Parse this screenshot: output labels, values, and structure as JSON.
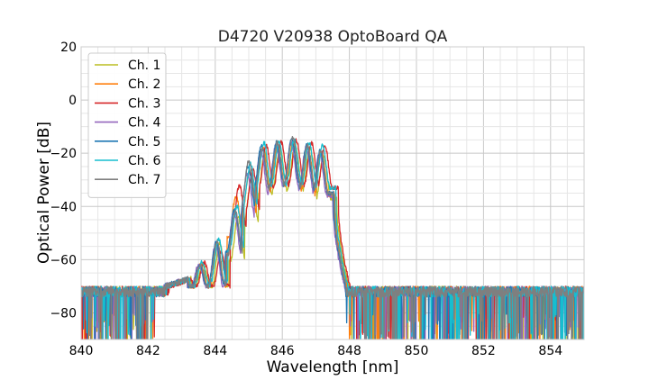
{
  "chart_data": {
    "type": "line",
    "title": "D4720 V20938 OptoBoard QA",
    "xlabel": "Wavelength [nm]",
    "ylabel": "Optical Power [dB]",
    "xlim": [
      840,
      855
    ],
    "ylim": [
      -90,
      20
    ],
    "xticks": [
      840,
      842,
      844,
      846,
      848,
      850,
      852,
      854
    ],
    "yticks": [
      -80,
      -60,
      -40,
      -20,
      0,
      20
    ],
    "xtick_labels": [
      "840",
      "842",
      "844",
      "846",
      "848",
      "850",
      "852",
      "854"
    ],
    "ytick_labels": [
      "−80",
      "−60",
      "−40",
      "−20",
      "0",
      "20"
    ],
    "grid": true,
    "legend_position": "upper-left",
    "noise_floor": -72,
    "series": [
      {
        "name": "Ch. 1",
        "color": "#bcbd22",
        "shift": 0.08,
        "peaks": [
          [
            843.55,
            -62
          ],
          [
            844.05,
            -54
          ],
          [
            844.6,
            -44
          ],
          [
            845.0,
            -30
          ],
          [
            845.4,
            -20
          ],
          [
            845.85,
            -18
          ],
          [
            846.3,
            -17
          ],
          [
            846.75,
            -18
          ],
          [
            847.15,
            -21
          ]
        ]
      },
      {
        "name": "Ch. 2",
        "color": "#ff7f0e",
        "shift": 0.02,
        "peaks": [
          [
            843.55,
            -62
          ],
          [
            844.05,
            -54
          ],
          [
            844.6,
            -36
          ],
          [
            845.0,
            -27
          ],
          [
            845.4,
            -18
          ],
          [
            845.85,
            -17
          ],
          [
            846.3,
            -16
          ],
          [
            846.75,
            -18
          ],
          [
            847.15,
            -20
          ]
        ]
      },
      {
        "name": "Ch. 3",
        "color": "#d62728",
        "shift": 0.12,
        "peaks": [
          [
            843.55,
            -61
          ],
          [
            844.05,
            -57
          ],
          [
            844.6,
            -32
          ],
          [
            845.0,
            -26
          ],
          [
            845.4,
            -17
          ],
          [
            845.85,
            -16
          ],
          [
            846.3,
            -15
          ],
          [
            846.75,
            -16
          ],
          [
            847.15,
            -17
          ]
        ]
      },
      {
        "name": "Ch. 4",
        "color": "#9467bd",
        "shift": -0.04,
        "peaks": [
          [
            843.55,
            -62
          ],
          [
            844.05,
            -54
          ],
          [
            844.6,
            -42
          ],
          [
            845.0,
            -28
          ],
          [
            845.4,
            -19
          ],
          [
            845.85,
            -17
          ],
          [
            846.3,
            -16
          ],
          [
            846.75,
            -18
          ],
          [
            847.15,
            -20
          ]
        ]
      },
      {
        "name": "Ch. 5",
        "color": "#1f77b4",
        "shift": -0.02,
        "peaks": [
          [
            843.55,
            -62
          ],
          [
            844.05,
            -53
          ],
          [
            844.6,
            -41
          ],
          [
            845.0,
            -25
          ],
          [
            845.4,
            -17
          ],
          [
            845.85,
            -16
          ],
          [
            846.3,
            -15
          ],
          [
            846.75,
            -17
          ],
          [
            847.15,
            -19
          ]
        ]
      },
      {
        "name": "Ch. 6",
        "color": "#17becf",
        "shift": 0.05,
        "peaks": [
          [
            843.55,
            -61
          ],
          [
            844.05,
            -52
          ],
          [
            844.6,
            -40
          ],
          [
            845.0,
            -24
          ],
          [
            845.4,
            -16
          ],
          [
            845.85,
            -16
          ],
          [
            846.3,
            -15
          ],
          [
            846.75,
            -16
          ],
          [
            847.15,
            -17
          ]
        ]
      },
      {
        "name": "Ch. 7",
        "color": "#7f7f7f",
        "shift": 0.0,
        "peaks": [
          [
            843.55,
            -62
          ],
          [
            844.05,
            -53
          ],
          [
            844.6,
            -42
          ],
          [
            845.0,
            -23
          ],
          [
            845.4,
            -18
          ],
          [
            845.85,
            -16
          ],
          [
            846.3,
            -14
          ],
          [
            846.75,
            -17
          ],
          [
            847.15,
            -19
          ]
        ]
      }
    ]
  }
}
